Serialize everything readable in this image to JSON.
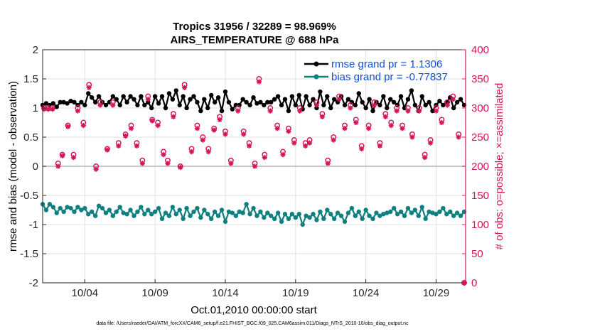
{
  "chart_data": {
    "type": "line",
    "title": "Tropics 31956 / 32289 = 98.969%",
    "subtitle": "AIRS_TEMPERATURE @ 688 hPa",
    "xlabel": "Oct.01,2010 00:00:00 start",
    "ylabel": "rmse and bias (model - observation)",
    "y2label": "# of obs: o=possible; ×=assimilated",
    "footer": "data file: /Users/raeder/DAI/ATM_forcXX/CAM6_setup/f.e21.FHIST_BGC.f09_025.CAM6assim.011/Diags_NTrS_2010-10/obs_diag_output.nc",
    "xlim": [
      1.0,
      31.1
    ],
    "ylim": [
      -2,
      2
    ],
    "y2lim": [
      0,
      400
    ],
    "x_ticks": [
      4,
      9,
      14,
      19,
      24,
      29
    ],
    "x_tick_labels": [
      "10/04",
      "10/09",
      "10/14",
      "10/19",
      "10/24",
      "10/29"
    ],
    "y_ticks": [
      -2,
      -1.5,
      -1,
      -0.5,
      0,
      0.5,
      1,
      1.5,
      2
    ],
    "y_tick_labels": [
      "-2",
      "-1.5",
      "-1",
      "-0.5",
      "0",
      "0.5",
      "1",
      "1.5",
      "2"
    ],
    "y2_ticks": [
      0,
      50,
      100,
      150,
      200,
      250,
      300,
      350,
      400
    ],
    "y2_tick_labels": [
      "0",
      "50",
      "100",
      "150",
      "200",
      "250",
      "300",
      "350",
      "400"
    ],
    "grid": true,
    "legend_position": "top-right",
    "colors": {
      "rmse": "#000000",
      "bias": "#0f8080",
      "obs": "#d6145a",
      "legend_text": "#1450d2",
      "zero_line": "#b4b4b4",
      "grid": "#e1e1e1"
    },
    "series": [
      {
        "name": "rmse grand pr = 1.1306",
        "axis": "left",
        "x": [
          1.0,
          1.25,
          1.5,
          1.75,
          2.0,
          2.25,
          2.5,
          2.75,
          3.0,
          3.25,
          3.5,
          3.75,
          4.0,
          4.25,
          4.5,
          4.75,
          5.0,
          5.25,
          5.5,
          5.75,
          6.0,
          6.25,
          6.5,
          6.75,
          7.0,
          7.25,
          7.5,
          7.75,
          8.0,
          8.25,
          8.5,
          8.75,
          9.0,
          9.25,
          9.5,
          9.75,
          10.0,
          10.25,
          10.5,
          10.75,
          11.0,
          11.25,
          11.5,
          11.75,
          12.0,
          12.25,
          12.5,
          12.75,
          13.0,
          13.25,
          13.5,
          13.75,
          14.0,
          14.25,
          14.5,
          14.75,
          15.0,
          15.25,
          15.5,
          15.75,
          16.0,
          16.25,
          16.5,
          16.75,
          17.0,
          17.25,
          17.5,
          17.75,
          18.0,
          18.25,
          18.5,
          18.75,
          19.0,
          19.25,
          19.5,
          19.75,
          20.0,
          20.25,
          20.5,
          20.75,
          21.0,
          21.25,
          21.5,
          21.75,
          22.0,
          22.25,
          22.5,
          22.75,
          23.0,
          23.25,
          23.5,
          23.75,
          24.0,
          24.25,
          24.5,
          24.75,
          25.0,
          25.25,
          25.5,
          25.75,
          26.0,
          26.25,
          26.5,
          26.75,
          27.0,
          27.25,
          27.5,
          27.75,
          28.0,
          28.25,
          28.5,
          28.75,
          29.0,
          29.25,
          29.5,
          29.75,
          30.0,
          30.25,
          30.5,
          30.75,
          31.0
        ],
        "values": [
          1.05,
          1.08,
          1.05,
          1.08,
          1.02,
          1.1,
          1.1,
          1.08,
          1.12,
          1.1,
          1.05,
          1.1,
          1.05,
          1.25,
          1.18,
          1.1,
          1.2,
          1.1,
          1.05,
          1.1,
          1.2,
          1.15,
          1.05,
          1.2,
          1.1,
          1.2,
          1.15,
          1.05,
          1.2,
          1.05,
          1.1,
          1.0,
          1.2,
          1.08,
          1.2,
          1.0,
          1.25,
          1.15,
          1.3,
          1.05,
          1.2,
          1.0,
          1.15,
          1.2,
          1.1,
          0.95,
          1.15,
          1.0,
          1.22,
          1.1,
          1.18,
          0.95,
          1.28,
          1.1,
          0.98,
          1.05,
          1.05,
          1.15,
          1.1,
          1.05,
          1.18,
          1.08,
          1.1,
          1.05,
          1.1,
          1.1,
          1.15,
          1.2,
          1.05,
          1.15,
          0.95,
          1.2,
          1.05,
          1.22,
          0.98,
          1.2,
          1.05,
          1.15,
          1.0,
          1.28,
          1.05,
          1.2,
          1.0,
          1.15,
          1.1,
          1.2,
          1.05,
          1.15,
          1.1,
          1.05,
          1.25,
          1.1,
          1.0,
          1.15,
          0.95,
          1.1,
          1.05,
          1.2,
          1.0,
          1.15,
          1.1,
          1.05,
          1.2,
          1.0,
          1.15,
          1.3,
          1.05,
          0.95,
          1.2,
          1.05,
          1.1,
          0.95,
          1.05,
          1.12,
          1.05,
          1.1,
          1.18,
          1.0,
          1.1,
          1.15,
          1.05
        ]
      },
      {
        "name": "bias grand pr = -0.77837",
        "axis": "left",
        "x": [
          1.0,
          1.25,
          1.5,
          1.75,
          2.0,
          2.25,
          2.5,
          2.75,
          3.0,
          3.25,
          3.5,
          3.75,
          4.0,
          4.25,
          4.5,
          4.75,
          5.0,
          5.25,
          5.5,
          5.75,
          6.0,
          6.25,
          6.5,
          6.75,
          7.0,
          7.25,
          7.5,
          7.75,
          8.0,
          8.25,
          8.5,
          8.75,
          9.0,
          9.25,
          9.5,
          9.75,
          10.0,
          10.25,
          10.5,
          10.75,
          11.0,
          11.25,
          11.5,
          11.75,
          12.0,
          12.25,
          12.5,
          12.75,
          13.0,
          13.25,
          13.5,
          13.75,
          14.0,
          14.25,
          14.5,
          14.75,
          15.0,
          15.25,
          15.5,
          15.75,
          16.0,
          16.25,
          16.5,
          16.75,
          17.0,
          17.25,
          17.5,
          17.75,
          18.0,
          18.25,
          18.5,
          18.75,
          19.0,
          19.25,
          19.5,
          19.75,
          20.0,
          20.25,
          20.5,
          20.75,
          21.0,
          21.25,
          21.5,
          21.75,
          22.0,
          22.25,
          22.5,
          22.75,
          23.0,
          23.25,
          23.5,
          23.75,
          24.0,
          24.25,
          24.5,
          24.75,
          25.0,
          25.25,
          25.5,
          25.75,
          26.0,
          26.25,
          26.5,
          26.75,
          27.0,
          27.25,
          27.5,
          27.75,
          28.0,
          28.25,
          28.5,
          28.75,
          29.0,
          29.25,
          29.5,
          29.75,
          30.0,
          30.25,
          30.5,
          30.75,
          31.0
        ],
        "values": [
          -0.65,
          -0.75,
          -0.65,
          -0.7,
          -0.8,
          -0.72,
          -0.78,
          -0.7,
          -0.72,
          -0.78,
          -0.7,
          -0.75,
          -0.72,
          -0.82,
          -0.78,
          -0.85,
          -0.68,
          -0.72,
          -0.8,
          -0.75,
          -0.85,
          -0.78,
          -0.7,
          -0.8,
          -0.82,
          -0.75,
          -0.85,
          -0.78,
          -0.7,
          -0.82,
          -0.75,
          -0.82,
          -0.78,
          -0.72,
          -0.9,
          -0.8,
          -0.85,
          -0.7,
          -0.82,
          -0.75,
          -0.9,
          -0.72,
          -0.85,
          -0.78,
          -0.72,
          -0.88,
          -0.75,
          -0.82,
          -0.9,
          -0.78,
          -0.85,
          -0.75,
          -0.95,
          -0.78,
          -0.8,
          -0.85,
          -0.78,
          -0.8,
          -0.65,
          -0.82,
          -0.72,
          -0.85,
          -0.78,
          -0.88,
          -0.8,
          -0.85,
          -0.9,
          -0.8,
          -0.95,
          -0.82,
          -0.9,
          -0.82,
          -0.88,
          -0.82,
          -1.0,
          -0.85,
          -0.88,
          -0.82,
          -0.92,
          -0.78,
          -0.9,
          -0.75,
          -0.82,
          -0.9,
          -0.8,
          -0.85,
          -0.95,
          -0.8,
          -0.72,
          -0.85,
          -0.78,
          -0.9,
          -0.75,
          -0.85,
          -0.9,
          -0.8,
          -0.85,
          -0.82,
          -0.8,
          -0.78,
          -0.72,
          -0.82,
          -0.78,
          -0.85,
          -0.72,
          -0.8,
          -0.75,
          -0.85,
          -0.7,
          -0.9,
          -0.78,
          -0.8,
          -0.82,
          -0.78,
          -0.72,
          -0.82,
          -0.78,
          -0.85,
          -0.8,
          -0.85,
          -0.78
        ]
      },
      {
        "name": "obs possible",
        "axis": "right",
        "marker": "o",
        "x": [
          1.1,
          1.4,
          1.7,
          2.1,
          2.4,
          2.8,
          3.2,
          3.5,
          3.9,
          4.3,
          4.8,
          5.1,
          5.6,
          6.0,
          6.4,
          6.9,
          7.3,
          7.7,
          8.1,
          8.5,
          8.8,
          9.2,
          9.6,
          9.9,
          10.3,
          10.8,
          11.1,
          11.6,
          12.0,
          12.4,
          12.8,
          13.2,
          13.6,
          14.0,
          14.4,
          14.9,
          15.3,
          15.7,
          16.1,
          16.4,
          16.8,
          17.2,
          17.7,
          18.1,
          18.5,
          18.9,
          19.3,
          19.7,
          20.0,
          20.5,
          20.9,
          21.3,
          21.7,
          22.1,
          22.5,
          22.9,
          23.3,
          23.7,
          24.2,
          24.6,
          25.0,
          25.4,
          25.8,
          26.2,
          26.6,
          27.0,
          27.3,
          27.8,
          28.2,
          28.6,
          29.0,
          29.4,
          29.8,
          30.2,
          30.6,
          31.0
        ],
        "values": [
          300,
          300,
          300,
          205,
          220,
          270,
          220,
          300,
          275,
          340,
          200,
          310,
          230,
          310,
          240,
          255,
          270,
          240,
          210,
          320,
          280,
          275,
          225,
          210,
          290,
          200,
          340,
          230,
          270,
          250,
          230,
          265,
          285,
          260,
          210,
          300,
          260,
          240,
          205,
          350,
          220,
          300,
          270,
          225,
          265,
          245,
          300,
          240,
          245,
          310,
          290,
          210,
          250,
          320,
          270,
          305,
          280,
          235,
          270,
          310,
          240,
          290,
          275,
          300,
          270,
          300,
          255,
          300,
          220,
          245,
          300,
          280,
          310,
          320,
          255,
          0
        ]
      },
      {
        "name": "obs assimilated",
        "axis": "right",
        "marker": "*",
        "x": [
          1.1,
          1.4,
          1.7,
          2.1,
          2.4,
          2.8,
          3.2,
          3.5,
          3.9,
          4.3,
          4.8,
          5.1,
          5.6,
          6.0,
          6.4,
          6.9,
          7.3,
          7.7,
          8.1,
          8.5,
          8.8,
          9.2,
          9.6,
          9.9,
          10.3,
          10.8,
          11.1,
          11.6,
          12.0,
          12.4,
          12.8,
          13.2,
          13.6,
          14.0,
          14.4,
          14.9,
          15.3,
          15.7,
          16.1,
          16.4,
          16.8,
          17.2,
          17.7,
          18.1,
          18.5,
          18.9,
          19.3,
          19.7,
          20.0,
          20.5,
          20.9,
          21.3,
          21.7,
          22.1,
          22.5,
          22.9,
          23.3,
          23.7,
          24.2,
          24.6,
          25.0,
          25.4,
          25.8,
          26.2,
          26.6,
          27.0,
          27.3,
          27.8,
          28.2,
          28.6,
          29.0,
          29.4,
          29.8,
          30.2,
          30.6,
          31.0
        ],
        "values": [
          298,
          298,
          298,
          200,
          218,
          268,
          215,
          295,
          270,
          335,
          195,
          305,
          228,
          305,
          235,
          252,
          265,
          235,
          205,
          315,
          278,
          270,
          220,
          205,
          285,
          198,
          335,
          225,
          265,
          245,
          225,
          262,
          280,
          255,
          205,
          295,
          255,
          235,
          200,
          345,
          215,
          295,
          265,
          220,
          260,
          240,
          295,
          235,
          240,
          305,
          285,
          205,
          245,
          315,
          265,
          300,
          275,
          230,
          265,
          305,
          235,
          285,
          270,
          295,
          265,
          295,
          250,
          295,
          215,
          240,
          295,
          275,
          305,
          315,
          250,
          0
        ]
      }
    ]
  }
}
